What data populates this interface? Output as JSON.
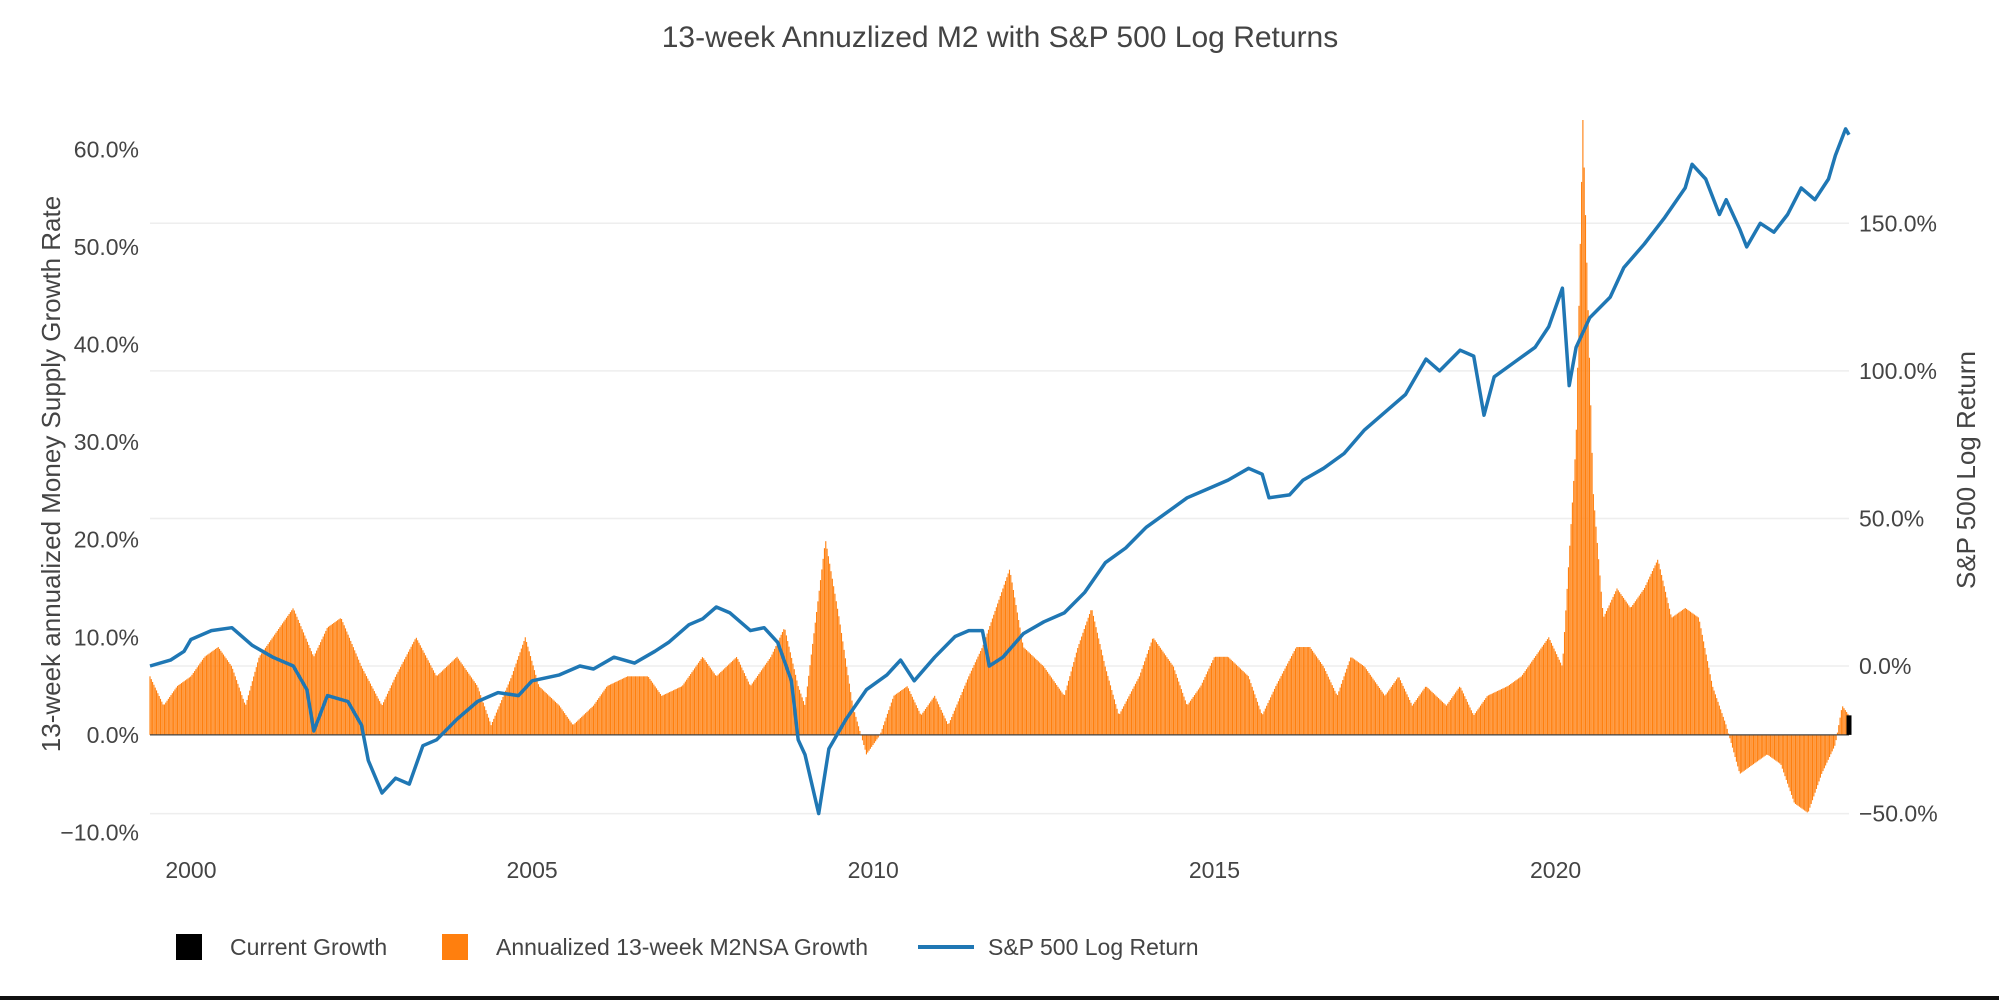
{
  "chart_data": {
    "type": "bar",
    "title": "13-week Annuzlized M2 with S&P 500 Log Returns",
    "ylabel_left": "13-week annualized Money Supply Growth Rate",
    "ylabel_right": "S&P 500 Log Return",
    "x_ticks": [
      "2000",
      "2005",
      "2010",
      "2015",
      "2020"
    ],
    "x_tick_values": [
      2000,
      2005,
      2010,
      2015,
      2020
    ],
    "xlim": [
      1999.4,
      2024.3
    ],
    "y_left_ticks": [
      "−10.0%",
      "0.0%",
      "10.0%",
      "20.0%",
      "30.0%",
      "40.0%",
      "50.0%",
      "60.0%"
    ],
    "y_left_tick_values": [
      -10,
      0,
      10,
      20,
      30,
      40,
      50,
      60
    ],
    "y_left_lim": [
      -12,
      63
    ],
    "y_right_ticks": [
      "−50.0%",
      "0.0%",
      "50.0%",
      "100.0%",
      "150.0%"
    ],
    "y_right_tick_values": [
      -50,
      0,
      50,
      100,
      150
    ],
    "y_right_lim": [
      -63,
      185
    ],
    "grid": true,
    "legend_position": "bottom-left",
    "colors": {
      "growth_bars": "#ff7f0e",
      "sp500_line": "#1f77b4",
      "current_growth": "#000000",
      "grid": "#eeeeee",
      "axis_text": "#444444"
    },
    "series": [
      {
        "name": "Annualized 13-week M2NSA Growth",
        "kind": "bar",
        "axis": "left",
        "points": [
          [
            1999.4,
            6
          ],
          [
            1999.6,
            3
          ],
          [
            1999.8,
            5
          ],
          [
            2000.0,
            6
          ],
          [
            2000.2,
            8
          ],
          [
            2000.4,
            9
          ],
          [
            2000.6,
            7
          ],
          [
            2000.8,
            3
          ],
          [
            2001.0,
            8
          ],
          [
            2001.2,
            10
          ],
          [
            2001.5,
            13
          ],
          [
            2001.8,
            8
          ],
          [
            2002.0,
            11
          ],
          [
            2002.2,
            12
          ],
          [
            2002.5,
            7
          ],
          [
            2002.8,
            3
          ],
          [
            2003.0,
            6
          ],
          [
            2003.3,
            10
          ],
          [
            2003.6,
            6
          ],
          [
            2003.9,
            8
          ],
          [
            2004.2,
            5
          ],
          [
            2004.4,
            1
          ],
          [
            2004.7,
            6
          ],
          [
            2004.9,
            10
          ],
          [
            2005.1,
            5
          ],
          [
            2005.4,
            3
          ],
          [
            2005.6,
            1
          ],
          [
            2005.9,
            3
          ],
          [
            2006.1,
            5
          ],
          [
            2006.4,
            6
          ],
          [
            2006.7,
            6
          ],
          [
            2006.9,
            4
          ],
          [
            2007.2,
            5
          ],
          [
            2007.5,
            8
          ],
          [
            2007.7,
            6
          ],
          [
            2008.0,
            8
          ],
          [
            2008.2,
            5
          ],
          [
            2008.5,
            8
          ],
          [
            2008.7,
            11
          ],
          [
            2008.9,
            5
          ],
          [
            2009.0,
            3
          ],
          [
            2009.3,
            20
          ],
          [
            2009.5,
            12
          ],
          [
            2009.7,
            3
          ],
          [
            2009.9,
            -2
          ],
          [
            2010.1,
            0
          ],
          [
            2010.3,
            4
          ],
          [
            2010.5,
            5
          ],
          [
            2010.7,
            2
          ],
          [
            2010.9,
            4
          ],
          [
            2011.1,
            1
          ],
          [
            2011.4,
            6
          ],
          [
            2011.6,
            9
          ],
          [
            2011.8,
            13
          ],
          [
            2012.0,
            17
          ],
          [
            2012.2,
            9
          ],
          [
            2012.5,
            7
          ],
          [
            2012.8,
            4
          ],
          [
            2013.0,
            9
          ],
          [
            2013.2,
            13
          ],
          [
            2013.4,
            7
          ],
          [
            2013.6,
            2
          ],
          [
            2013.9,
            6
          ],
          [
            2014.1,
            10
          ],
          [
            2014.4,
            7
          ],
          [
            2014.6,
            3
          ],
          [
            2014.8,
            5
          ],
          [
            2015.0,
            8
          ],
          [
            2015.2,
            8
          ],
          [
            2015.5,
            6
          ],
          [
            2015.7,
            2
          ],
          [
            2015.9,
            5
          ],
          [
            2016.2,
            9
          ],
          [
            2016.4,
            9
          ],
          [
            2016.6,
            7
          ],
          [
            2016.8,
            4
          ],
          [
            2017.0,
            8
          ],
          [
            2017.2,
            7
          ],
          [
            2017.5,
            4
          ],
          [
            2017.7,
            6
          ],
          [
            2017.9,
            3
          ],
          [
            2018.1,
            5
          ],
          [
            2018.4,
            3
          ],
          [
            2018.6,
            5
          ],
          [
            2018.8,
            2
          ],
          [
            2019.0,
            4
          ],
          [
            2019.3,
            5
          ],
          [
            2019.5,
            6
          ],
          [
            2019.7,
            8
          ],
          [
            2019.9,
            10
          ],
          [
            2020.1,
            7
          ],
          [
            2020.3,
            30
          ],
          [
            2020.4,
            63
          ],
          [
            2020.55,
            25
          ],
          [
            2020.7,
            12
          ],
          [
            2020.9,
            15
          ],
          [
            2021.1,
            13
          ],
          [
            2021.3,
            15
          ],
          [
            2021.5,
            18
          ],
          [
            2021.7,
            12
          ],
          [
            2021.9,
            13
          ],
          [
            2022.1,
            12
          ],
          [
            2022.3,
            5
          ],
          [
            2022.5,
            1
          ],
          [
            2022.7,
            -4
          ],
          [
            2022.9,
            -3
          ],
          [
            2023.1,
            -2
          ],
          [
            2023.3,
            -3
          ],
          [
            2023.5,
            -7
          ],
          [
            2023.7,
            -8
          ],
          [
            2023.9,
            -4
          ],
          [
            2024.1,
            -1
          ],
          [
            2024.2,
            3
          ],
          [
            2024.3,
            2
          ]
        ]
      },
      {
        "name": "S&P 500 Log Return",
        "kind": "line",
        "axis": "right",
        "points": [
          [
            1999.4,
            0
          ],
          [
            1999.7,
            2
          ],
          [
            1999.9,
            5
          ],
          [
            2000.0,
            9
          ],
          [
            2000.3,
            12
          ],
          [
            2000.6,
            13
          ],
          [
            2000.9,
            7
          ],
          [
            2001.2,
            3
          ],
          [
            2001.5,
            0
          ],
          [
            2001.7,
            -8
          ],
          [
            2001.8,
            -22
          ],
          [
            2002.0,
            -10
          ],
          [
            2002.3,
            -12
          ],
          [
            2002.5,
            -20
          ],
          [
            2002.6,
            -32
          ],
          [
            2002.8,
            -43
          ],
          [
            2003.0,
            -38
          ],
          [
            2003.2,
            -40
          ],
          [
            2003.4,
            -27
          ],
          [
            2003.6,
            -25
          ],
          [
            2003.9,
            -18
          ],
          [
            2004.2,
            -12
          ],
          [
            2004.5,
            -9
          ],
          [
            2004.8,
            -10
          ],
          [
            2005.0,
            -5
          ],
          [
            2005.4,
            -3
          ],
          [
            2005.7,
            0
          ],
          [
            2005.9,
            -1
          ],
          [
            2006.2,
            3
          ],
          [
            2006.5,
            1
          ],
          [
            2006.8,
            5
          ],
          [
            2007.0,
            8
          ],
          [
            2007.3,
            14
          ],
          [
            2007.5,
            16
          ],
          [
            2007.7,
            20
          ],
          [
            2007.9,
            18
          ],
          [
            2008.2,
            12
          ],
          [
            2008.4,
            13
          ],
          [
            2008.6,
            8
          ],
          [
            2008.8,
            -5
          ],
          [
            2008.9,
            -25
          ],
          [
            2009.0,
            -30
          ],
          [
            2009.2,
            -50
          ],
          [
            2009.35,
            -28
          ],
          [
            2009.6,
            -18
          ],
          [
            2009.9,
            -8
          ],
          [
            2010.2,
            -3
          ],
          [
            2010.4,
            2
          ],
          [
            2010.6,
            -5
          ],
          [
            2010.9,
            3
          ],
          [
            2011.2,
            10
          ],
          [
            2011.4,
            12
          ],
          [
            2011.6,
            12
          ],
          [
            2011.7,
            0
          ],
          [
            2011.9,
            3
          ],
          [
            2012.2,
            11
          ],
          [
            2012.5,
            15
          ],
          [
            2012.8,
            18
          ],
          [
            2013.1,
            25
          ],
          [
            2013.4,
            35
          ],
          [
            2013.7,
            40
          ],
          [
            2014.0,
            47
          ],
          [
            2014.3,
            52
          ],
          [
            2014.6,
            57
          ],
          [
            2014.9,
            60
          ],
          [
            2015.2,
            63
          ],
          [
            2015.5,
            67
          ],
          [
            2015.7,
            65
          ],
          [
            2015.8,
            57
          ],
          [
            2016.1,
            58
          ],
          [
            2016.3,
            63
          ],
          [
            2016.6,
            67
          ],
          [
            2016.9,
            72
          ],
          [
            2017.2,
            80
          ],
          [
            2017.5,
            86
          ],
          [
            2017.8,
            92
          ],
          [
            2018.1,
            104
          ],
          [
            2018.3,
            100
          ],
          [
            2018.6,
            107
          ],
          [
            2018.8,
            105
          ],
          [
            2018.95,
            85
          ],
          [
            2019.1,
            98
          ],
          [
            2019.4,
            103
          ],
          [
            2019.7,
            108
          ],
          [
            2019.9,
            115
          ],
          [
            2020.1,
            128
          ],
          [
            2020.2,
            95
          ],
          [
            2020.3,
            108
          ],
          [
            2020.5,
            118
          ],
          [
            2020.8,
            125
          ],
          [
            2021.0,
            135
          ],
          [
            2021.3,
            143
          ],
          [
            2021.6,
            152
          ],
          [
            2021.9,
            162
          ],
          [
            2022.0,
            170
          ],
          [
            2022.2,
            165
          ],
          [
            2022.4,
            153
          ],
          [
            2022.5,
            158
          ],
          [
            2022.7,
            148
          ],
          [
            2022.8,
            142
          ],
          [
            2023.0,
            150
          ],
          [
            2023.2,
            147
          ],
          [
            2023.4,
            153
          ],
          [
            2023.6,
            162
          ],
          [
            2023.8,
            158
          ],
          [
            2024.0,
            165
          ],
          [
            2024.1,
            173
          ],
          [
            2024.25,
            182
          ],
          [
            2024.3,
            180
          ]
        ]
      },
      {
        "name": "Current Growth",
        "kind": "bar",
        "axis": "left",
        "points": [
          [
            2024.3,
            2
          ]
        ]
      }
    ]
  },
  "legend": {
    "items": [
      {
        "label": "Current Growth",
        "color": "#000000",
        "kind": "square"
      },
      {
        "label": "Annualized 13-week M2NSA Growth",
        "color": "#ff7f0e",
        "kind": "square"
      },
      {
        "label": "S&P 500 Log Return",
        "color": "#1f77b4",
        "kind": "line"
      }
    ]
  }
}
